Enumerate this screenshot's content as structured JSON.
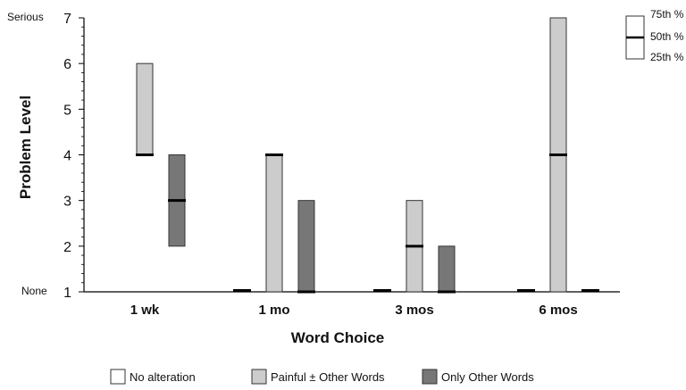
{
  "chart_data": {
    "type": "boxplot",
    "xlabel": "Word Choice",
    "ylabel": "Problem Level",
    "ylim": [
      1,
      7
    ],
    "yticks": [
      "1",
      "2",
      "3",
      "4",
      "5",
      "6",
      "7"
    ],
    "ytick_bottom_text": "None",
    "ytick_top_text": "Serious",
    "categories": [
      "1 wk",
      "1 mo",
      "3 mos",
      "6 mos"
    ],
    "series": [
      {
        "name": "No alteration",
        "color": "#ffffff",
        "boxes": [
          null,
          {
            "q1": 1,
            "median": 1,
            "q3": 1
          },
          {
            "q1": 1,
            "median": 1,
            "q3": 1
          },
          {
            "q1": 1,
            "median": 1,
            "q3": 1
          }
        ]
      },
      {
        "name": "Painful ± Other Words",
        "color": "#cccccc",
        "boxes": [
          {
            "q1": 4,
            "median": 4,
            "q3": 6
          },
          {
            "q1": 1,
            "median": 4,
            "q3": 4
          },
          {
            "q1": 1,
            "median": 2,
            "q3": 3
          },
          {
            "q1": 1,
            "median": 4,
            "q3": 7
          }
        ]
      },
      {
        "name": "Only Other Words",
        "color": "#777777",
        "boxes": [
          {
            "q1": 2,
            "median": 3,
            "q3": 4
          },
          {
            "q1": 1,
            "median": 1,
            "q3": 3
          },
          {
            "q1": 1,
            "median": 1,
            "q3": 2
          },
          {
            "q1": 1,
            "median": 1,
            "q3": 1
          }
        ]
      }
    ],
    "key": {
      "labels": [
        "75th %",
        "50th %",
        "25th %"
      ]
    },
    "grid": false
  }
}
